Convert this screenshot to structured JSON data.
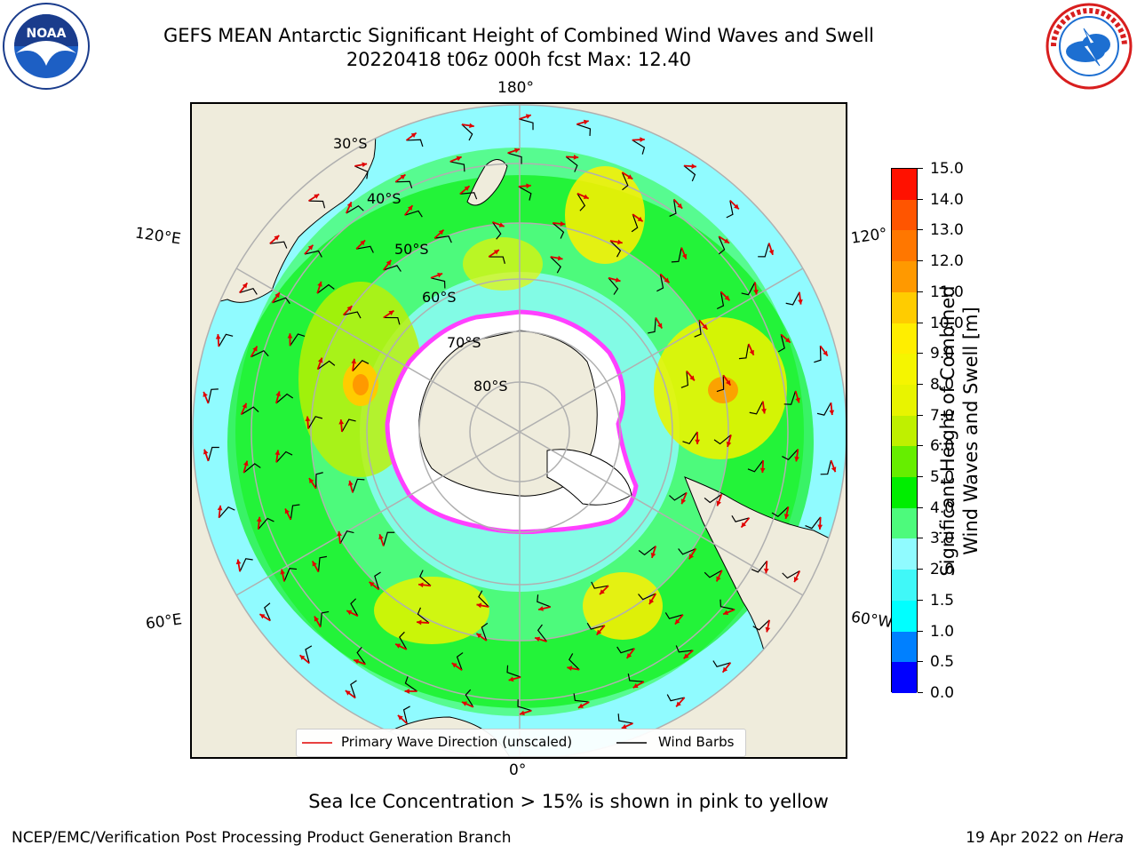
{
  "header": {
    "title_line1": "GEFS MEAN Antarctic Significant Height of Combined Wind Waves and Swell",
    "title_line2": "20220418 t06z 000h fcst   Max: 12.40"
  },
  "logos": {
    "left": {
      "name": "NOAA",
      "ring_text": "NATIONAL OCEANIC AND ATMOSPHERIC ADMINISTRATION · U.S. DEPARTMENT OF COMMERCE",
      "colors": [
        "#1a3c8c",
        "#2a7fd4",
        "#ffffff"
      ]
    },
    "right": {
      "name": "NATIONAL WEATHER SERVICE",
      "colors": [
        "#d81e1e",
        "#1d6fd1",
        "#ffffff"
      ]
    }
  },
  "map": {
    "projection": "south polar stereographic",
    "longitude_labels": [
      "180°",
      "120°E",
      "120°",
      "60°E",
      "60°W",
      "0°"
    ],
    "latitude_labels": [
      "30°S",
      "40°S",
      "50°S",
      "60°S",
      "70°S",
      "80°S"
    ],
    "colors": {
      "land": "#efecdc",
      "ocean_low": "#7ef7ff",
      "grid": "#b0b0b0",
      "wave_arrow": "#e00000",
      "wind_barb": "#000000",
      "ice_edge": "#ff40ff"
    }
  },
  "legend": {
    "primary_wave": "Primary Wave Direction (unscaled)",
    "wind_barbs": "Wind Barbs"
  },
  "colorbar": {
    "label_line1": "Significant Height of Combined",
    "label_line2": "Wind Waves and Swell [m]",
    "ticks": [
      "15.0",
      "14.0",
      "13.0",
      "12.0",
      "11.0",
      "10.0",
      "9.0",
      "8.0",
      "7.0",
      "6.0",
      "5.0",
      "4.0",
      "3.0",
      "2.0",
      "1.5",
      "1.0",
      "0.5",
      "0.0"
    ],
    "bins": [
      {
        "from": 0.0,
        "to": 0.5,
        "color": "#0000ff"
      },
      {
        "from": 0.5,
        "to": 1.0,
        "color": "#0080ff"
      },
      {
        "from": 1.0,
        "to": 1.5,
        "color": "#00ffff"
      },
      {
        "from": 1.5,
        "to": 2.0,
        "color": "#40f8f8"
      },
      {
        "from": 2.0,
        "to": 3.0,
        "color": "#90fbff"
      },
      {
        "from": 3.0,
        "to": 4.0,
        "color": "#4dfa7c"
      },
      {
        "from": 4.0,
        "to": 5.0,
        "color": "#00ee00"
      },
      {
        "from": 5.0,
        "to": 6.0,
        "color": "#66ee00"
      },
      {
        "from": 6.0,
        "to": 7.0,
        "color": "#bff000"
      },
      {
        "from": 7.0,
        "to": 8.0,
        "color": "#e8f400"
      },
      {
        "from": 8.0,
        "to": 9.0,
        "color": "#f5f500"
      },
      {
        "from": 9.0,
        "to": 10.0,
        "color": "#ffee00"
      },
      {
        "from": 10.0,
        "to": 11.0,
        "color": "#ffcc00"
      },
      {
        "from": 11.0,
        "to": 12.0,
        "color": "#ff9900"
      },
      {
        "from": 12.0,
        "to": 13.0,
        "color": "#ff7700"
      },
      {
        "from": 13.0,
        "to": 14.0,
        "color": "#ff5500"
      },
      {
        "from": 14.0,
        "to": 15.0,
        "color": "#ff1100"
      }
    ]
  },
  "subtitle": "Sea Ice Concentration > 15% is shown in pink to yellow",
  "footer": {
    "left": "NCEP/EMC/Verification Post Processing Product Generation Branch",
    "right_prefix": "19 Apr 2022 on ",
    "right_machine": "Hera"
  }
}
